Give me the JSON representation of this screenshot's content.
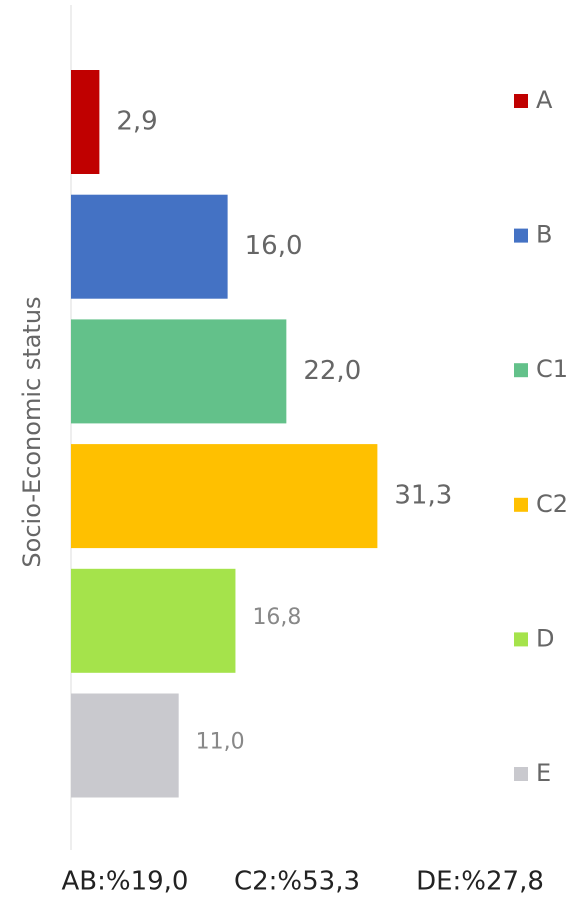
{
  "chart_data": {
    "type": "barh",
    "y_label": "Socio-Economic status",
    "categories": [
      "A",
      "B",
      "C1",
      "C2",
      "D",
      "E"
    ],
    "values": [
      2.9,
      16.0,
      22.0,
      31.3,
      16.8,
      11.0
    ],
    "value_labels": [
      "2,9",
      "16,0",
      "22,0",
      "31,3",
      "16,8",
      "11,0"
    ],
    "colors": [
      "#c00000",
      "#4472c4",
      "#63c18a",
      "#ffc000",
      "#a5e34b",
      "#c9c9ce"
    ],
    "xlim": [
      0,
      52
    ],
    "legend": "right",
    "annotations": [
      "AB:%19,0",
      "C2:%53,3",
      "DE:%27,8"
    ]
  }
}
